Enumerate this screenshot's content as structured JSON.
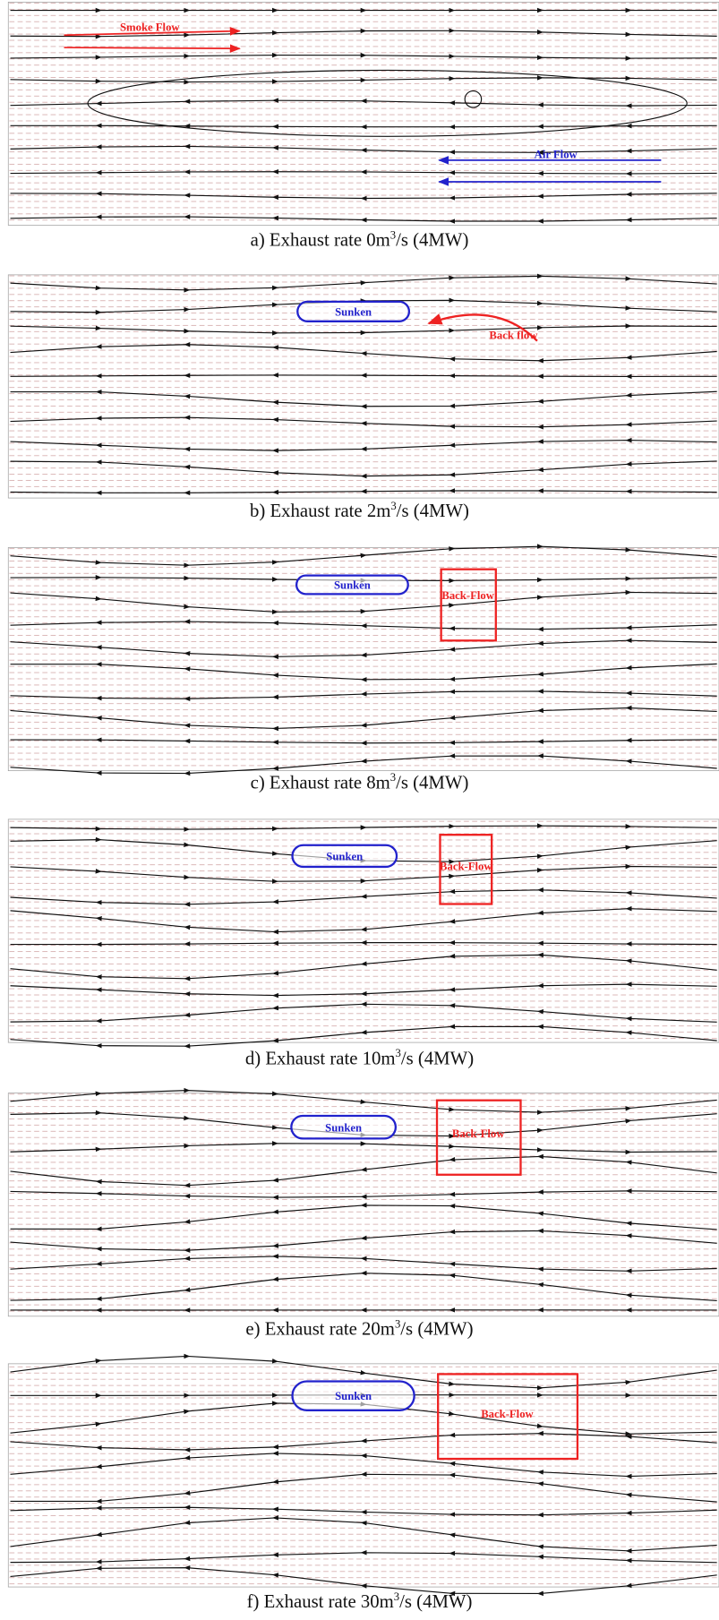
{
  "panels": [
    {
      "caption": {
        "before": "a) Exhaust rate 0m",
        "sup": "3",
        "after": "/s (4MW)"
      },
      "annotations": [
        "Smoke Flow",
        "Air Flow"
      ]
    },
    {
      "caption": {
        "before": "b) Exhaust rate 2m",
        "sup": "3",
        "after": "/s (4MW)"
      },
      "annotations": [
        "Sunken",
        "Back flow"
      ]
    },
    {
      "caption": {
        "before": "c) Exhaust rate 8m",
        "sup": "3",
        "after": "/s (4MW)"
      },
      "annotations": [
        "Sunken",
        "Back-Flow"
      ]
    },
    {
      "caption": {
        "before": "d) Exhaust rate 10m",
        "sup": "3",
        "after": "/s (4MW)"
      },
      "annotations": [
        "Sunken",
        "Back-Flow"
      ]
    },
    {
      "caption": {
        "before": "e) Exhaust rate 20m",
        "sup": "3",
        "after": "/s (4MW)"
      },
      "annotations": [
        "Sunken",
        "Back-Flow"
      ]
    },
    {
      "caption": {
        "before": "f) Exhaust rate 30m",
        "sup": "3",
        "after": "/s (4MW)"
      },
      "annotations": [
        "Sunken",
        "Back-Flow"
      ]
    }
  ]
}
